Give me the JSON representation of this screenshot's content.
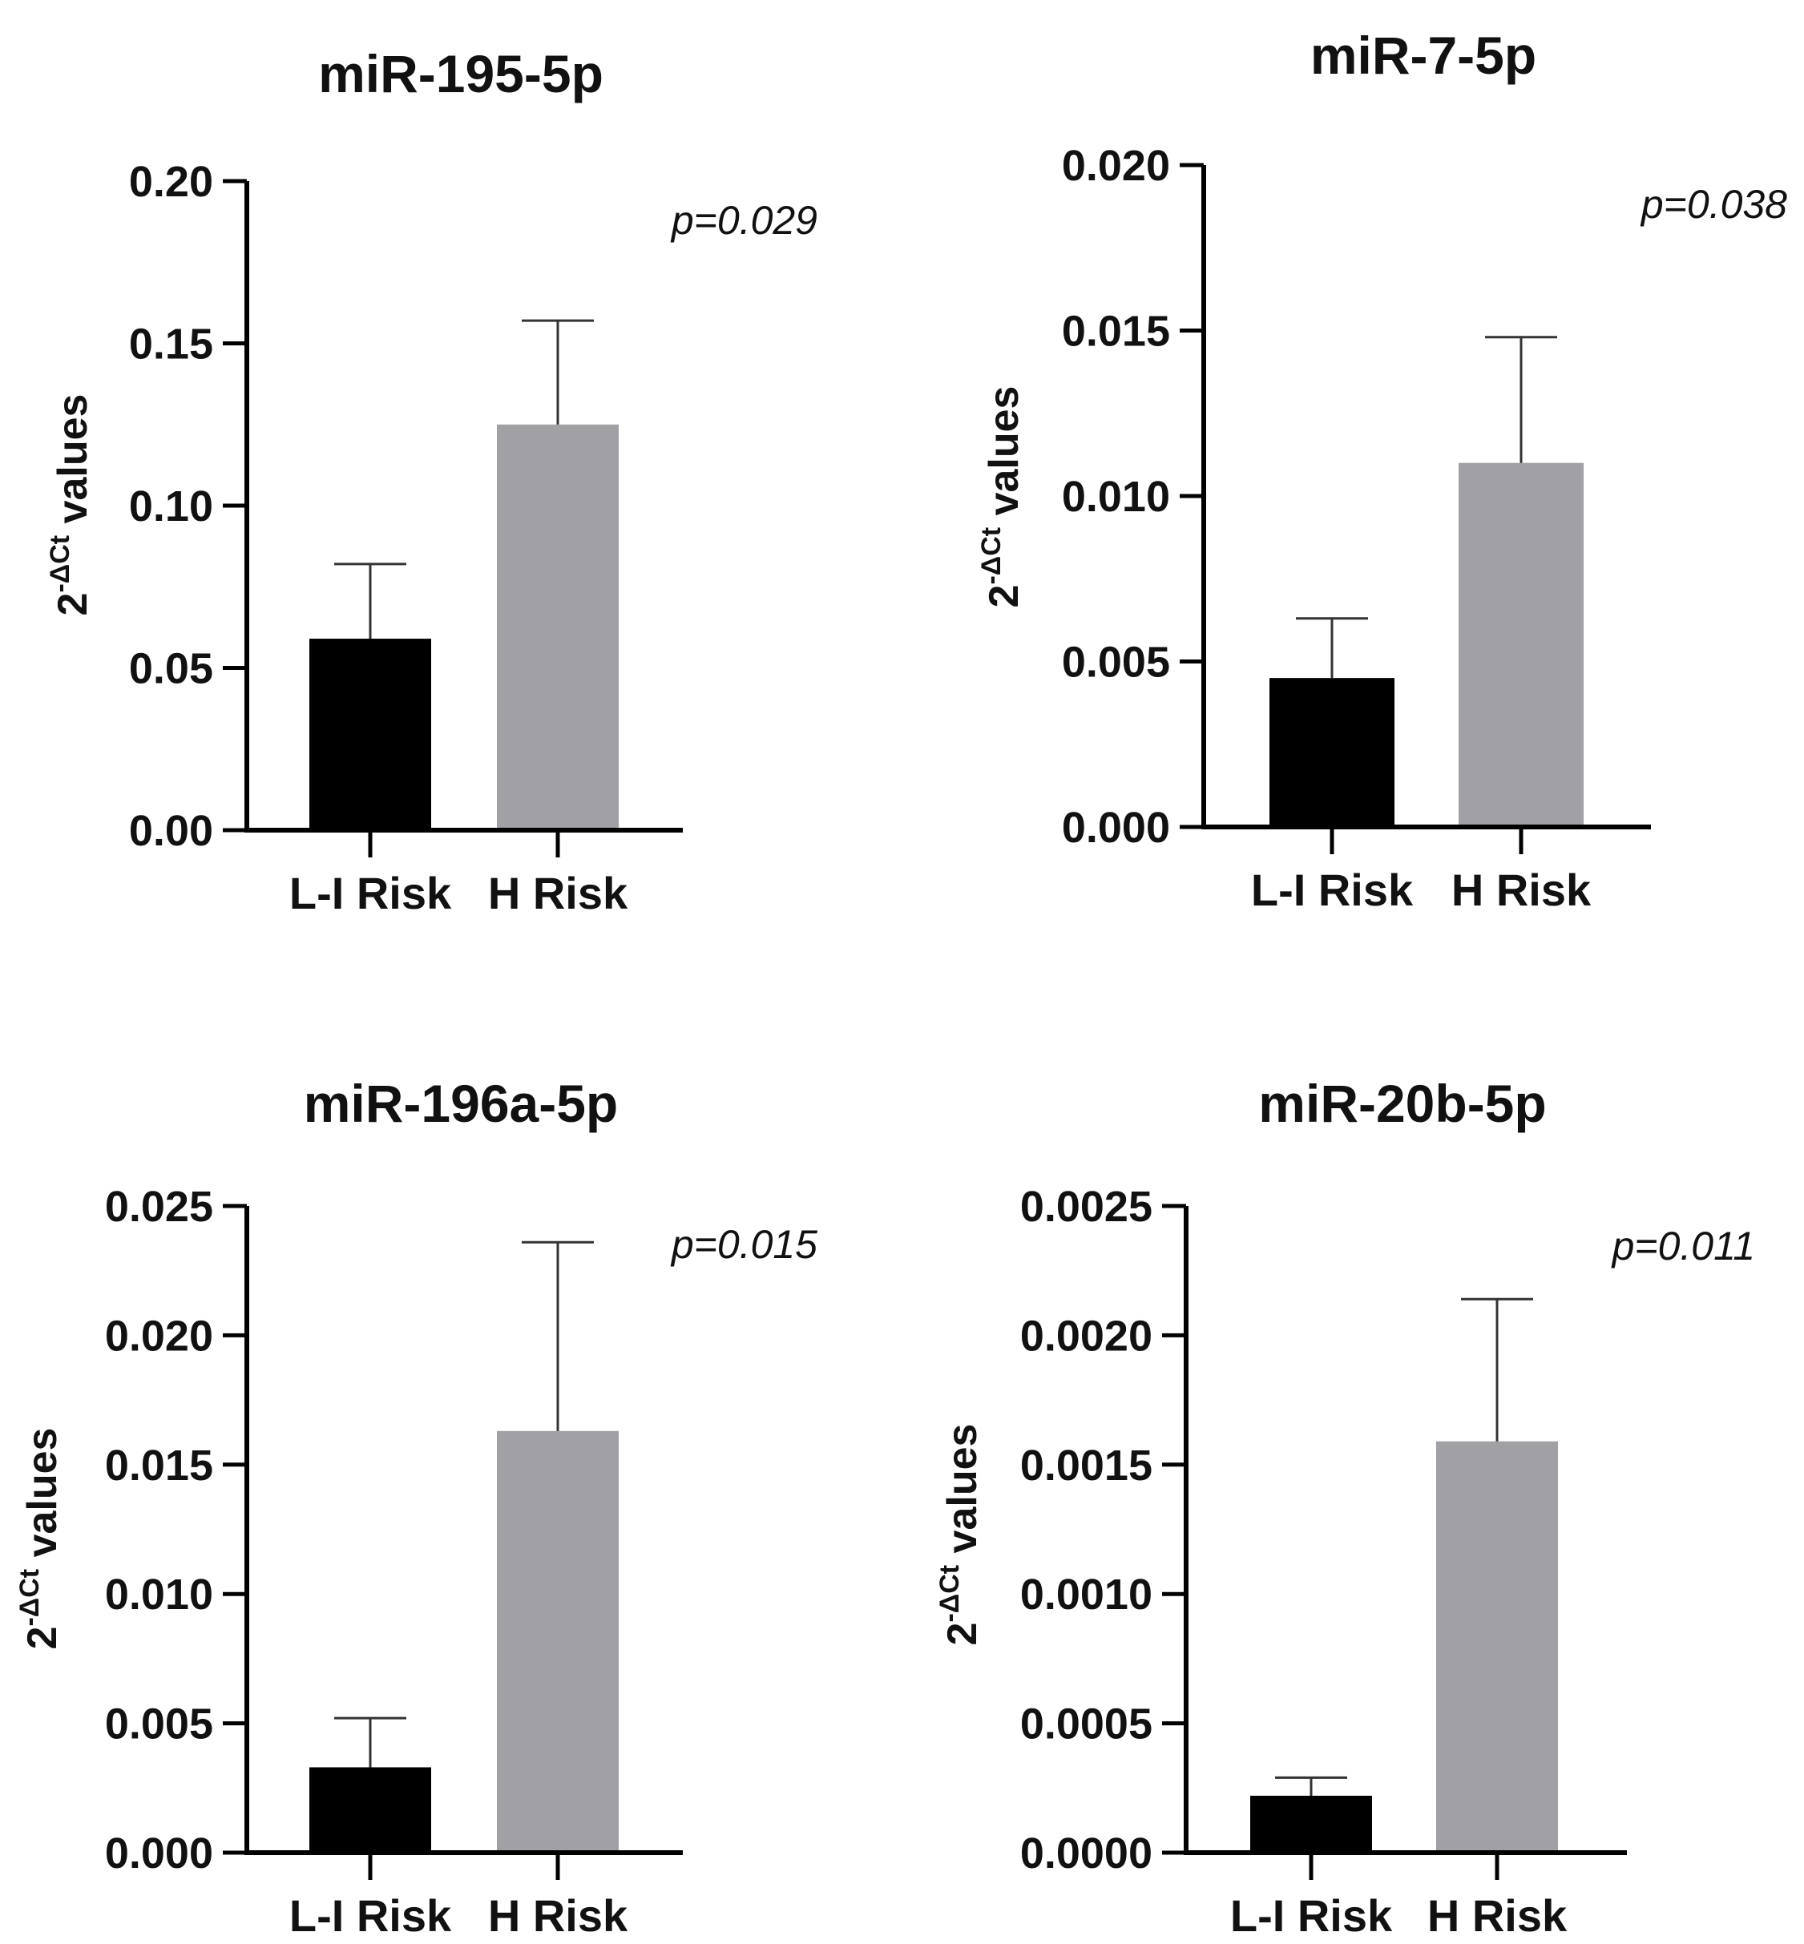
{
  "figure": {
    "ylabel": {
      "base": "2",
      "exponent": "-ΔCt",
      "suffix": " values"
    }
  },
  "chart_data": [
    {
      "type": "bar",
      "title": "miR-195-5p",
      "categories": [
        "L-I Risk",
        "H Risk"
      ],
      "values": [
        0.059,
        0.125
      ],
      "errors": [
        0.023,
        0.032
      ],
      "bar_colors": [
        "#000000",
        "#a1a1a5"
      ],
      "ylim": [
        0,
        0.2
      ],
      "yticks": [
        0.0,
        0.05,
        0.1,
        0.15,
        0.2
      ],
      "ytick_labels": [
        "0.00",
        "0.05",
        "0.10",
        "0.15",
        "0.20"
      ],
      "annotation": "p=0.029"
    },
    {
      "type": "bar",
      "title": "miR-7-5p",
      "categories": [
        "L-I Risk",
        "H Risk"
      ],
      "values": [
        0.0045,
        0.011
      ],
      "errors": [
        0.0018,
        0.0038
      ],
      "bar_colors": [
        "#000000",
        "#a1a1a5"
      ],
      "ylim": [
        0,
        0.02
      ],
      "yticks": [
        0.0,
        0.005,
        0.01,
        0.015,
        0.02
      ],
      "ytick_labels": [
        "0.000",
        "0.005",
        "0.010",
        "0.015",
        "0.020"
      ],
      "annotation": "p=0.038"
    },
    {
      "type": "bar",
      "title": "miR-196a-5p",
      "categories": [
        "L-I Risk",
        "H Risk"
      ],
      "values": [
        0.0033,
        0.0163
      ],
      "errors": [
        0.0019,
        0.0073
      ],
      "bar_colors": [
        "#000000",
        "#a1a1a5"
      ],
      "ylim": [
        0,
        0.025
      ],
      "yticks": [
        0.0,
        0.005,
        0.01,
        0.015,
        0.02,
        0.025
      ],
      "ytick_labels": [
        "0.000",
        "0.005",
        "0.010",
        "0.015",
        "0.020",
        "0.025"
      ],
      "annotation": "p=0.015"
    },
    {
      "type": "bar",
      "title": "miR-20b-5p",
      "categories": [
        "L-I Risk",
        "H Risk"
      ],
      "values": [
        0.00022,
        0.00159
      ],
      "errors": [
        7e-05,
        0.00055
      ],
      "bar_colors": [
        "#000000",
        "#a1a1a5"
      ],
      "ylim": [
        0,
        0.0025
      ],
      "yticks": [
        0.0,
        0.0005,
        0.001,
        0.0015,
        0.002,
        0.0025
      ],
      "ytick_labels": [
        "0.0000",
        "0.0005",
        "0.0010",
        "0.0015",
        "0.0020",
        "0.0025"
      ],
      "annotation": "p=0.011"
    }
  ]
}
